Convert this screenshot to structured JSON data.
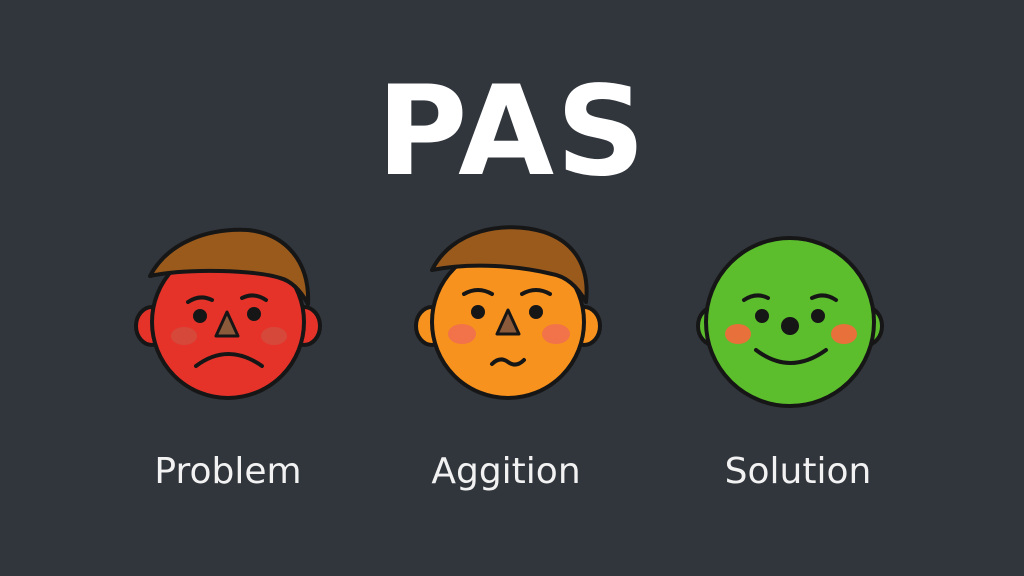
{
  "title": "PAS",
  "steps": [
    {
      "label": "Problem",
      "mood": "sad",
      "face_color": "#e5332a",
      "blush_color": "#d6483a",
      "hair": true
    },
    {
      "label": "Aggition",
      "mood": "worried",
      "face_color": "#f7921e",
      "blush_color": "#f2734a",
      "hair": true
    },
    {
      "label": "Solution",
      "mood": "happy",
      "face_color": "#5cbe2c",
      "blush_color": "#e8703a",
      "hair": false
    }
  ],
  "colors": {
    "background": "#31363d",
    "outline": "#161616",
    "hair": "#9a5a1c",
    "nose": "#8b5a3a",
    "text": "#ffffff"
  }
}
